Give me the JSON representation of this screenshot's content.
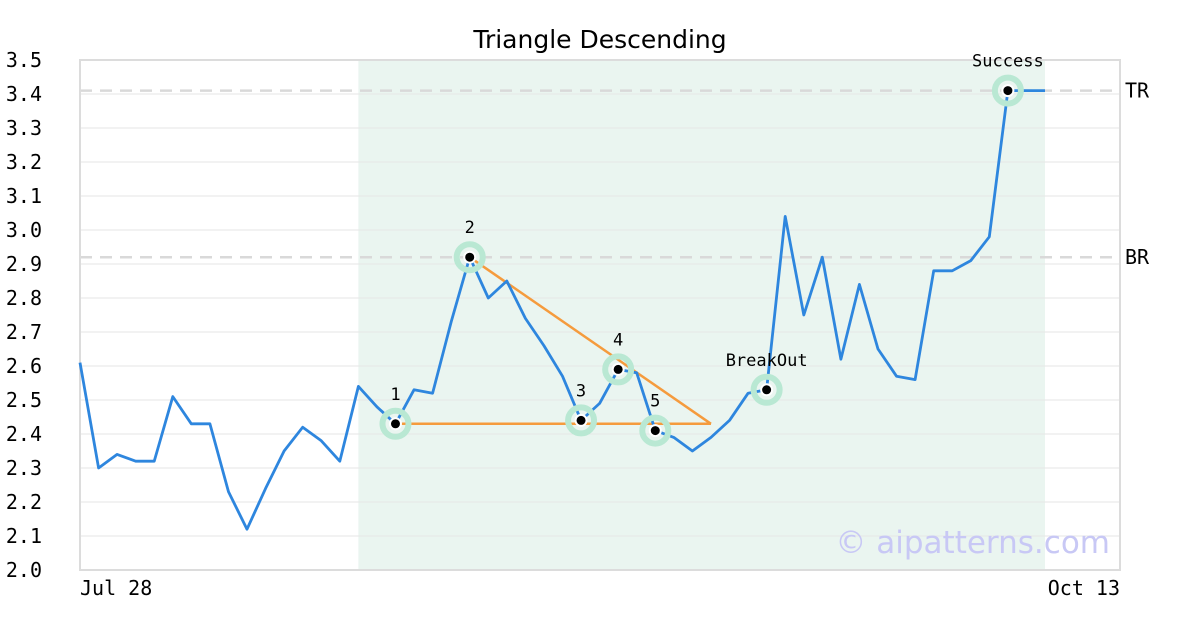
{
  "chart_data": {
    "type": "line",
    "title": "Triangle Descending",
    "ylim": [
      2.0,
      3.5
    ],
    "yticks": [
      "2.0",
      "2.1",
      "2.2",
      "2.3",
      "2.4",
      "2.5",
      "2.6",
      "2.7",
      "2.8",
      "2.9",
      "3.0",
      "3.1",
      "3.2",
      "3.3",
      "3.4",
      "3.5"
    ],
    "xtick_labels": [
      "Jul 28",
      "Oct 13"
    ],
    "grid": true,
    "series": [
      {
        "color": "#2e86de",
        "y": [
          2.61,
          2.3,
          2.34,
          2.32,
          2.32,
          2.51,
          2.43,
          2.43,
          2.23,
          2.12,
          2.24,
          2.35,
          2.42,
          2.38,
          2.32,
          2.54,
          2.48,
          2.43,
          2.53,
          2.52,
          2.73,
          2.92,
          2.8,
          2.85,
          2.74,
          2.66,
          2.57,
          2.44,
          2.49,
          2.59,
          2.58,
          2.41,
          2.39,
          2.35,
          2.39,
          2.44,
          2.52,
          2.53,
          3.04,
          2.75,
          2.92,
          2.62,
          2.84,
          2.65,
          2.57,
          2.56,
          2.88,
          2.88,
          2.91,
          2.98,
          3.41,
          3.41,
          3.41
        ]
      }
    ],
    "highlight_range": {
      "start_index": 15,
      "end_index": 52,
      "color": "#eaf5f0"
    },
    "pattern": {
      "color": "#f59b3d",
      "points": [
        {
          "label": "1",
          "index": 17,
          "y": 2.43
        },
        {
          "label": "2",
          "index": 21,
          "y": 2.92
        },
        {
          "label": "3",
          "index": 27,
          "y": 2.44
        },
        {
          "label": "4",
          "index": 29,
          "y": 2.59
        },
        {
          "label": "5",
          "index": 31,
          "y": 2.41
        },
        {
          "label": "BreakOut",
          "index": 37,
          "y": 2.53
        },
        {
          "label": "Success",
          "index": 50,
          "y": 3.41
        }
      ],
      "upper_line": [
        {
          "index": 21,
          "y": 2.92
        },
        {
          "index": 34,
          "y": 2.43
        }
      ],
      "lower_line": [
        {
          "index": 17,
          "y": 2.43
        },
        {
          "index": 34,
          "y": 2.43
        }
      ]
    },
    "reference_lines": [
      {
        "label": "TR",
        "y": 3.41
      },
      {
        "label": "BR",
        "y": 2.92
      }
    ],
    "watermark": "© aipatterns.com"
  }
}
